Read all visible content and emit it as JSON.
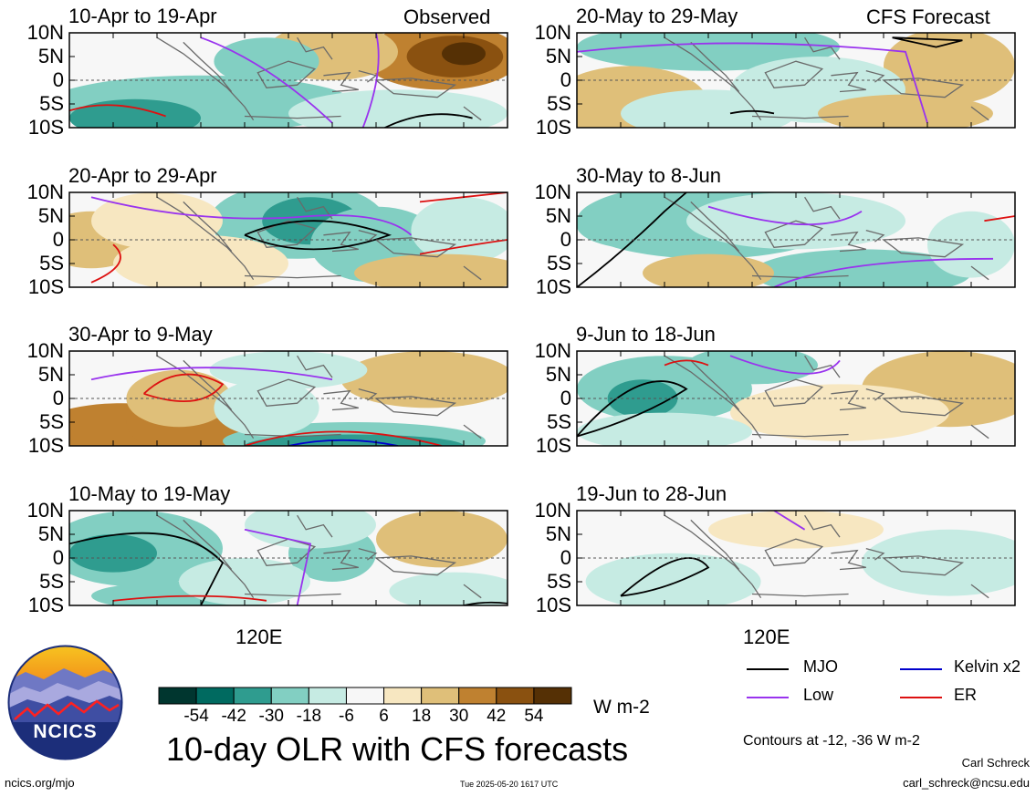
{
  "chart_data": {
    "type": "heatmap",
    "title": "10-day OLR with CFS forecasts",
    "units": "W m-2",
    "observed_label": "Observed",
    "forecast_label": "CFS Forecast",
    "x_label": "120E",
    "y_ticks": [
      "10N",
      "5N",
      "0",
      "5S",
      "10S"
    ],
    "colorbar": {
      "levels": [
        "-54",
        "-42",
        "-30",
        "-18",
        "-6",
        "6",
        "18",
        "30",
        "42",
        "54"
      ],
      "colors": [
        "#00362f",
        "#006a60",
        "#2f9c8f",
        "#82cfc2",
        "#c6ebe3",
        "#f7f7f7",
        "#f7e7c1",
        "#dfbf79",
        "#bf8130",
        "#8a5110",
        "#553005"
      ]
    },
    "panels": [
      {
        "period": "10-Apr to 19-Apr",
        "source": "observed"
      },
      {
        "period": "20-Apr to 29-Apr",
        "source": "observed"
      },
      {
        "period": "30-Apr to 9-May",
        "source": "observed"
      },
      {
        "period": "10-May to 19-May",
        "source": "observed"
      },
      {
        "period": "20-May to 29-May",
        "source": "forecast"
      },
      {
        "period": "30-May to 8-Jun",
        "source": "forecast"
      },
      {
        "period": "9-Jun to 18-Jun",
        "source": "forecast"
      },
      {
        "period": "19-Jun to 28-Jun",
        "source": "forecast"
      }
    ],
    "legend": [
      {
        "name": "MJO",
        "color": "#000000"
      },
      {
        "name": "Low",
        "color": "#9933ee"
      },
      {
        "name": "Kelvin x2",
        "color": "#0000cc"
      },
      {
        "name": "ER",
        "color": "#dd1111"
      }
    ],
    "contour_note": "Contours at -12, -36 W m-2"
  },
  "footer": {
    "site": "ncics.org/mjo",
    "timestamp": "Tue 2025-05-20 1617 UTC",
    "author": "Carl Schreck",
    "email": "carl_schreck@ncsu.edu",
    "logo_text": "NCICS"
  }
}
